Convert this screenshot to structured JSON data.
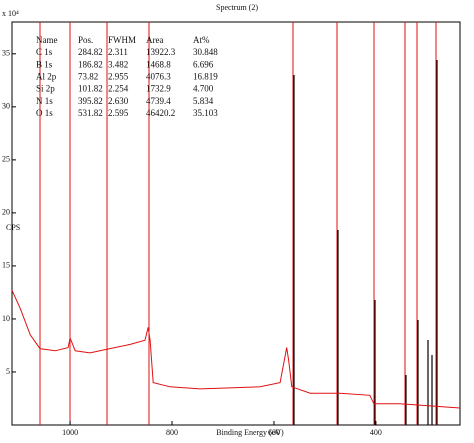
{
  "chart_data": {
    "type": "line",
    "title": "Spectrum (2)",
    "y_scale_label": "x 10⁴",
    "ylabel": "CPS",
    "xlabel": "Binding Energy (eV)",
    "x": [
      1114,
      1098,
      1078,
      1059,
      1029,
      1004,
      1000,
      990,
      961,
      922,
      882,
      853,
      847,
      843,
      837,
      804,
      745,
      686,
      627,
      588,
      575,
      571,
      565,
      529,
      471,
      412,
      404,
      353,
      294,
      235
    ],
    "series": [
      {
        "color": "#e01010",
        "values": [
          12.7,
          11,
          8.5,
          7.2,
          7.0,
          7.3,
          8.2,
          7.0,
          6.8,
          7.2,
          7.6,
          8.0,
          9.2,
          8.0,
          4.0,
          3.6,
          3.4,
          3.5,
          3.6,
          4.0,
          7.3,
          6.0,
          3.6,
          3.0,
          3.0,
          2.8,
          2.0,
          2.0,
          1.8,
          1.6
        ]
      }
    ],
    "xlim": [
      1114,
      235
    ],
    "xticks": [
      1000,
      800,
      600,
      400
    ],
    "ylim": [
      0,
      38
    ],
    "yticks": [
      5,
      10,
      15,
      20,
      25,
      30,
      35
    ],
    "table": {
      "header": [
        "Name",
        "Pos.",
        "FWHM",
        "Area",
        "At%"
      ],
      "rows": [
        [
          "C 1s",
          "284.82",
          "2.311",
          "13922.3",
          "30.848"
        ],
        [
          "B 1s",
          "186.82",
          "3.482",
          "1468.8",
          "6.696"
        ],
        [
          "Al 2p",
          "73.82",
          "2.955",
          "4076.3",
          "16.819"
        ],
        [
          "Si 2p",
          "101.82",
          "2.254",
          "1732.9",
          "4.700"
        ],
        [
          "N 1s",
          "395.82",
          "2.630",
          "4739.4",
          "5.834"
        ],
        [
          "O 1s",
          "531.82",
          "2.595",
          "46420.2",
          "35.103"
        ]
      ]
    }
  }
}
